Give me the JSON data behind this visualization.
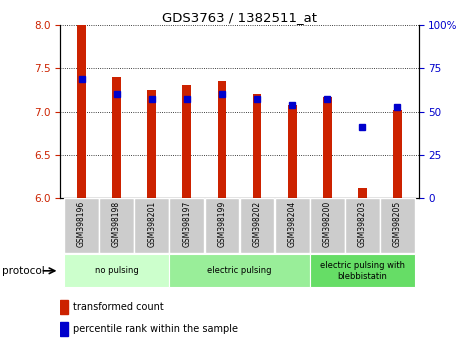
{
  "title": "GDS3763 / 1382511_at",
  "samples": [
    "GSM398196",
    "GSM398198",
    "GSM398201",
    "GSM398197",
    "GSM398199",
    "GSM398202",
    "GSM398204",
    "GSM398200",
    "GSM398203",
    "GSM398205"
  ],
  "red_values": [
    8.0,
    7.4,
    7.25,
    7.3,
    7.35,
    7.2,
    7.08,
    7.17,
    6.12,
    7.02
  ],
  "blue_values": [
    7.38,
    7.2,
    7.15,
    7.15,
    7.2,
    7.15,
    7.07,
    7.15,
    6.82,
    7.05
  ],
  "ylim_left": [
    6.0,
    8.0
  ],
  "ylim_right": [
    0,
    100
  ],
  "yticks_left": [
    6.0,
    6.5,
    7.0,
    7.5,
    8.0
  ],
  "yticks_right": [
    0,
    25,
    50,
    75,
    100
  ],
  "ytick_labels_right": [
    "0",
    "25",
    "50",
    "75",
    "100%"
  ],
  "red_color": "#cc2200",
  "blue_color": "#0000cc",
  "bar_width": 0.25,
  "groups": [
    {
      "label": "no pulsing",
      "start": 0,
      "end": 3
    },
    {
      "label": "electric pulsing",
      "start": 3,
      "end": 7
    },
    {
      "label": "electric pulsing with\nblebbistatin",
      "start": 7,
      "end": 10
    }
  ],
  "group_colors": [
    "#ccffcc",
    "#99ee99",
    "#66dd66"
  ],
  "protocol_label": "protocol",
  "legend_red": "transformed count",
  "legend_blue": "percentile rank within the sample"
}
